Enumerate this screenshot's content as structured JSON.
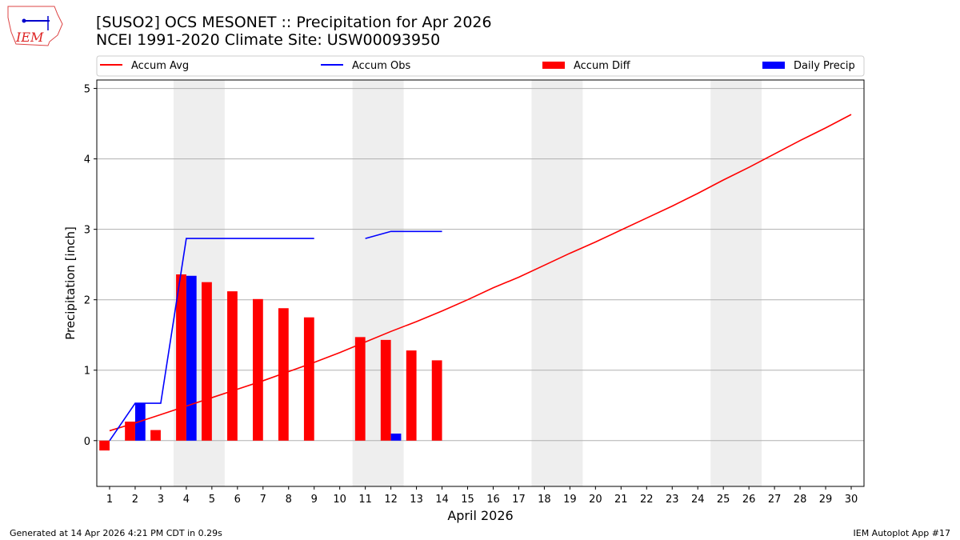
{
  "header": {
    "title_line1": "[SUSO2] OCS MESONET :: Precipitation for Apr 2026",
    "title_line2": "NCEI 1991-2020 Climate Site: USW00093950",
    "logo_text": "IEM"
  },
  "footer": {
    "left": "Generated at 14 Apr 2026 4:21 PM CDT in 0.29s",
    "right": "IEM Autoplot App #17"
  },
  "chart_data": {
    "type": "bar",
    "xlabel": "April 2026",
    "ylabel": "Precipitation [inch]",
    "xlim": [
      0.5,
      30.5
    ],
    "ylim": [
      -0.65,
      5.12
    ],
    "xticks": [
      1,
      2,
      3,
      4,
      5,
      6,
      7,
      8,
      9,
      10,
      11,
      12,
      13,
      14,
      15,
      16,
      17,
      18,
      19,
      20,
      21,
      22,
      23,
      24,
      25,
      26,
      27,
      28,
      29,
      30
    ],
    "yticks": [
      0,
      1,
      2,
      3,
      4,
      5
    ],
    "grid": "y",
    "legend_placement": "top",
    "weekend_shading": [
      [
        3.5,
        5.5
      ],
      [
        10.5,
        12.5
      ],
      [
        17.5,
        19.5
      ],
      [
        24.5,
        26.5
      ]
    ],
    "days": [
      1,
      2,
      3,
      4,
      5,
      6,
      7,
      8,
      9,
      10,
      11,
      12,
      13,
      14,
      15,
      16,
      17,
      18,
      19,
      20,
      21,
      22,
      23,
      24,
      25,
      26,
      27,
      28,
      29,
      30
    ],
    "series": [
      {
        "name": "Accum Avg",
        "type": "line",
        "color": "#ff0000",
        "values": [
          0.14,
          0.25,
          0.37,
          0.49,
          0.61,
          0.73,
          0.85,
          0.98,
          1.11,
          1.25,
          1.4,
          1.55,
          1.69,
          1.84,
          2.0,
          2.17,
          2.32,
          2.49,
          2.66,
          2.82,
          2.99,
          3.16,
          3.33,
          3.51,
          3.7,
          3.88,
          4.07,
          4.26,
          4.44,
          4.63
        ]
      },
      {
        "name": "Accum Obs",
        "type": "line",
        "color": "#0000ff",
        "values": [
          0,
          0.53,
          0.53,
          2.87,
          2.87,
          2.87,
          2.87,
          2.87,
          2.87,
          null,
          2.87,
          2.97,
          2.97,
          2.97
        ]
      },
      {
        "name": "Accum Diff",
        "type": "bar",
        "color": "#ff0000",
        "values": [
          -0.14,
          0.27,
          0.15,
          2.36,
          2.25,
          2.12,
          2.01,
          1.88,
          1.75,
          null,
          1.47,
          1.43,
          1.28,
          1.14
        ]
      },
      {
        "name": "Daily Precip",
        "type": "bar",
        "color": "#0000ff",
        "values": [
          0,
          0.53,
          0,
          2.34,
          0,
          0,
          0,
          0,
          0,
          null,
          0,
          0.1,
          0,
          0
        ]
      }
    ]
  }
}
